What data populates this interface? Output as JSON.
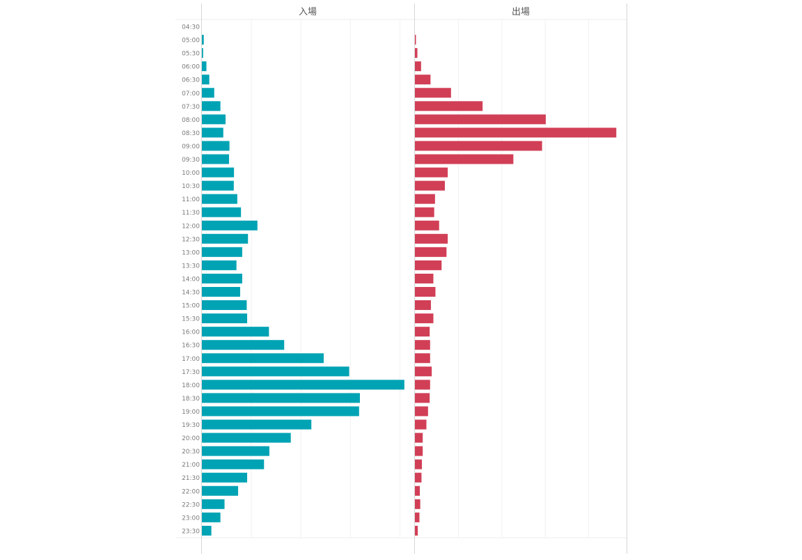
{
  "chart_data": {
    "type": "bar",
    "orientation": "horizontal",
    "categories": [
      "04:30",
      "05:00",
      "05:30",
      "06:00",
      "06:30",
      "07:00",
      "07:30",
      "08:00",
      "08:30",
      "09:00",
      "09:30",
      "10:00",
      "10:30",
      "11:00",
      "11:30",
      "12:00",
      "12:30",
      "13:00",
      "13:30",
      "14:00",
      "14:30",
      "15:00",
      "15:30",
      "16:00",
      "16:30",
      "17:00",
      "17:30",
      "18:00",
      "18:30",
      "19:00",
      "19:30",
      "20:00",
      "20:30",
      "21:00",
      "21:30",
      "22:00",
      "22:30",
      "23:00",
      "23:30"
    ],
    "series": [
      {
        "name": "入場",
        "color": "#00a3b4",
        "values": [
          0,
          0.9,
          0.6,
          2.2,
          3.6,
          6.0,
          9.0,
          11.5,
          10.4,
          13.4,
          13.2,
          15.6,
          15.5,
          17.2,
          19.0,
          27.0,
          22.4,
          19.6,
          16.8,
          19.6,
          18.6,
          21.8,
          22.0,
          32.6,
          40.0,
          59.2,
          71.6,
          98.4,
          76.8,
          76.4,
          53.2,
          43.2,
          32.8,
          30.2,
          22.0,
          17.6,
          11.0,
          9.0,
          4.6
        ]
      },
      {
        "name": "出場",
        "color": "#d13f56",
        "values": [
          0,
          0.5,
          1.2,
          3.0,
          7.6,
          17.6,
          33.0,
          63.8,
          98.2,
          62.0,
          48.0,
          16.0,
          14.6,
          9.8,
          9.4,
          11.8,
          16.0,
          15.4,
          13.0,
          9.0,
          10.0,
          7.8,
          9.0,
          7.2,
          7.4,
          7.4,
          8.2,
          7.4,
          7.2,
          6.4,
          5.6,
          3.8,
          3.8,
          3.4,
          3.2,
          2.4,
          2.6,
          2.2,
          1.4
        ]
      }
    ],
    "panel_titles": [
      "入場",
      "出場"
    ],
    "xlim": [
      0,
      103.2
    ],
    "grid": true,
    "legend": "none"
  }
}
